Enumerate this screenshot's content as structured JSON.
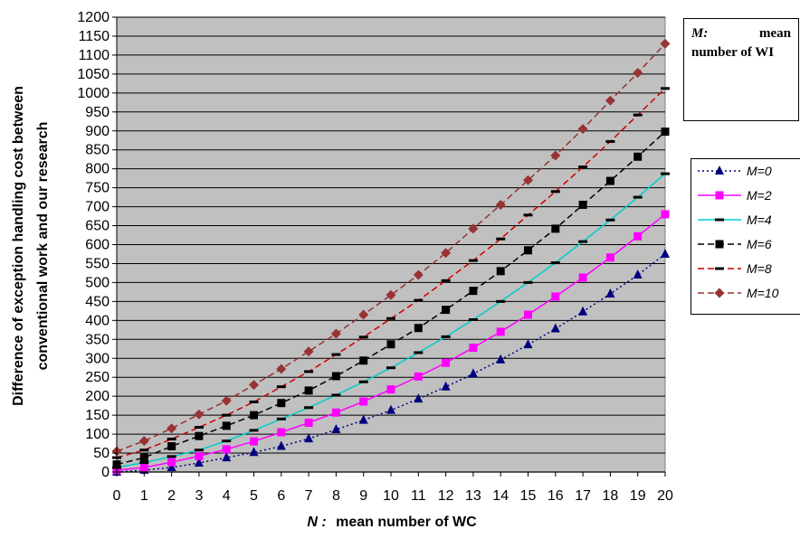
{
  "note": {
    "symbol": "M:",
    "text": "mean number of WI"
  },
  "chart_data": {
    "type": "line",
    "title": "",
    "xlabel_symbol": "N :",
    "xlabel": "mean number of WC",
    "ylabel_line1": "Difference of exception handling cost between",
    "ylabel_line2": "conventional work and our research",
    "xlim": [
      0,
      20
    ],
    "ylim": [
      0,
      1200
    ],
    "x_ticks": [
      "0",
      "1",
      "2",
      "3",
      "4",
      "5",
      "6",
      "7",
      "8",
      "9",
      "10",
      "11",
      "12",
      "13",
      "14",
      "15",
      "16",
      "17",
      "18",
      "19",
      "20"
    ],
    "y_ticks": [
      "0",
      "50",
      "100",
      "150",
      "200",
      "250",
      "300",
      "350",
      "400",
      "450",
      "500",
      "550",
      "600",
      "650",
      "700",
      "750",
      "800",
      "850",
      "900",
      "950",
      "1000",
      "1050",
      "1100",
      "1150",
      "1200"
    ],
    "grid": true,
    "legend_position": "right",
    "x": [
      0,
      1,
      2,
      3,
      4,
      5,
      6,
      7,
      8,
      9,
      10,
      11,
      12,
      13,
      14,
      15,
      16,
      17,
      18,
      19,
      20
    ],
    "series": [
      {
        "name": "M=0",
        "color": "#000080",
        "marker": "triangle",
        "line": "dotted",
        "values": [
          0,
          5,
          12,
          24,
          38,
          52,
          68,
          88,
          112,
          137,
          163,
          193,
          225,
          259,
          296,
          336,
          378,
          423,
          470,
          520,
          575
        ]
      },
      {
        "name": "M=2",
        "color": "#ff00ff",
        "marker": "square",
        "line": "solid",
        "values": [
          5,
          12,
          26,
          42,
          60,
          81,
          105,
          130,
          157,
          186,
          218,
          252,
          288,
          328,
          370,
          415,
          463,
          513,
          566,
          622,
          680
        ]
      },
      {
        "name": "M=4",
        "color": "#00cccc",
        "marker": "dash",
        "line": "solid",
        "values": [
          12,
          25,
          41,
          58,
          82,
          110,
          140,
          170,
          203,
          238,
          275,
          315,
          357,
          402,
          450,
          500,
          552,
          608,
          665,
          725,
          787
        ]
      },
      {
        "name": "M=6",
        "color": "#000000",
        "marker": "square",
        "line": "dashed",
        "values": [
          20,
          38,
          68,
          95,
          122,
          150,
          182,
          215,
          253,
          294,
          337,
          380,
          428,
          478,
          530,
          585,
          642,
          705,
          768,
          832,
          898
        ]
      },
      {
        "name": "M=8",
        "color": "#cc0000",
        "marker": "dash",
        "line": "dashed",
        "values": [
          38,
          58,
          87,
          118,
          150,
          185,
          225,
          265,
          310,
          356,
          405,
          453,
          505,
          558,
          615,
          678,
          740,
          805,
          872,
          942,
          1012
        ]
      },
      {
        "name": "M=10",
        "color": "#993333",
        "marker": "diamond",
        "line": "dashed",
        "values": [
          55,
          82,
          115,
          152,
          188,
          230,
          272,
          318,
          365,
          415,
          467,
          520,
          578,
          642,
          705,
          770,
          835,
          905,
          980,
          1053,
          1130
        ]
      }
    ]
  }
}
